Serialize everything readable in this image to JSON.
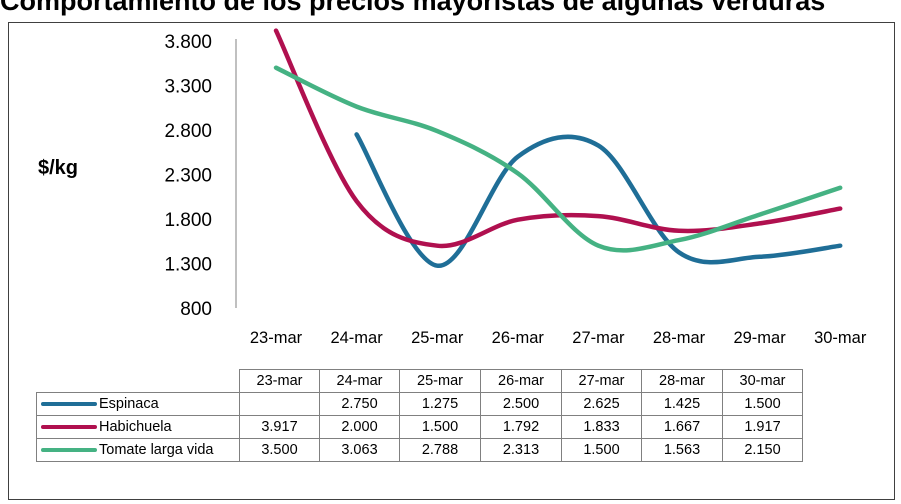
{
  "chart_data": {
    "type": "line",
    "title": "Comportamiento de los precios mayoristas de algunas verduras",
    "xlabel": "",
    "ylabel": "$/kg",
    "ylim": [
      800,
      3800
    ],
    "y_ticks": [
      "3.800",
      "3.300",
      "2.800",
      "2.300",
      "1.800",
      "1.300",
      "800"
    ],
    "x_ticks": [
      "23-mar",
      "24-mar",
      "25-mar",
      "26-mar",
      "27-mar",
      "28-mar",
      "29-mar",
      "30-mar"
    ],
    "grid": false,
    "legend": "data-table",
    "series": [
      {
        "name": "Espinaca",
        "color": "#1f6e97",
        "points": [
          [
            1,
            2750
          ],
          [
            2,
            1275
          ],
          [
            3,
            2500
          ],
          [
            4,
            2625
          ],
          [
            5,
            1425
          ],
          [
            6,
            1375
          ],
          [
            7,
            1500
          ]
        ]
      },
      {
        "name": "Habichuela",
        "color": "#b0104f",
        "points": [
          [
            0,
            3917
          ],
          [
            1,
            2000
          ],
          [
            2,
            1500
          ],
          [
            3,
            1792
          ],
          [
            4,
            1833
          ],
          [
            5,
            1667
          ],
          [
            6,
            1750
          ],
          [
            7,
            1917
          ]
        ]
      },
      {
        "name": "Tomate larga vida",
        "color": "#45b283",
        "points": [
          [
            0,
            3500
          ],
          [
            1,
            3063
          ],
          [
            2,
            2788
          ],
          [
            3,
            2313
          ],
          [
            4,
            1500
          ],
          [
            5,
            1563
          ],
          [
            6,
            1850
          ],
          [
            7,
            2150
          ]
        ]
      }
    ]
  },
  "table": {
    "headers": [
      "23-mar",
      "24-mar",
      "25-mar",
      "26-mar",
      "27-mar",
      "28-mar",
      "30-mar"
    ],
    "rows": [
      {
        "label": "Espinaca",
        "color": "#1f6e97",
        "cells": [
          "",
          "2.750",
          "1.275",
          "2.500",
          "2.625",
          "1.425",
          "1.500"
        ]
      },
      {
        "label": "Habichuela",
        "color": "#b0104f",
        "cells": [
          "3.917",
          "2.000",
          "1.500",
          "1.792",
          "1.833",
          "1.667",
          "1.917"
        ]
      },
      {
        "label": "Tomate larga vida",
        "color": "#45b283",
        "cells": [
          "3.500",
          "3.063",
          "2.788",
          "2.313",
          "1.500",
          "1.563",
          "2.150"
        ]
      }
    ]
  }
}
